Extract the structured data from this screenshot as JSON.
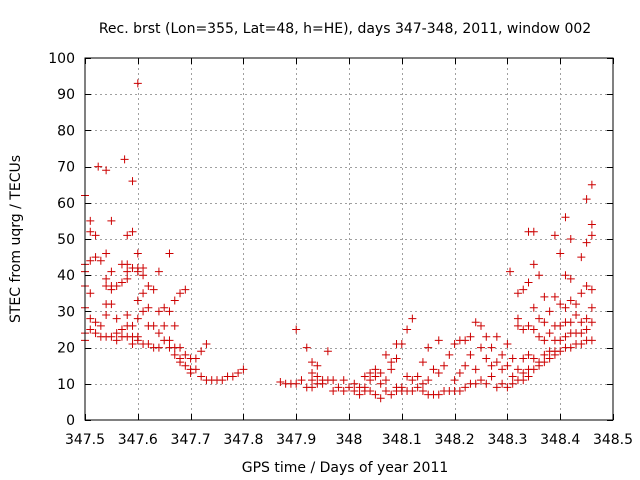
{
  "chart_data": {
    "type": "scatter",
    "title": "Rec. brst (Lon=355, Lat=48, h=HE), days 347-348, 2011, window 002",
    "xlabel": "GPS time / Days of year 2011",
    "ylabel": "STEC from uqrg / TECUs",
    "xlim": [
      347.5,
      348.5
    ],
    "ylim": [
      0,
      100
    ],
    "x_ticks": [
      347.5,
      347.6,
      347.7,
      347.8,
      347.9,
      348.0,
      348.1,
      348.2,
      348.3,
      348.4,
      348.5
    ],
    "x_tick_labels": [
      "347.5",
      "347.6",
      "347.7",
      "347.8",
      "347.9",
      "348",
      "348.1",
      "348.2",
      "348.3",
      "348.4",
      "348.5"
    ],
    "y_ticks": [
      0,
      10,
      20,
      30,
      40,
      50,
      60,
      70,
      80,
      90,
      100
    ],
    "y_tick_labels": [
      "0",
      "10",
      "20",
      "30",
      "40",
      "50",
      "60",
      "70",
      "80",
      "90",
      "100"
    ],
    "grid": true,
    "marker": "+",
    "marker_color": "#cc0000",
    "points": [
      [
        347.5,
        62
      ],
      [
        347.5,
        43
      ],
      [
        347.5,
        41
      ],
      [
        347.5,
        37
      ],
      [
        347.5,
        31
      ],
      [
        347.5,
        24
      ],
      [
        347.5,
        22
      ],
      [
        347.51,
        55
      ],
      [
        347.51,
        52
      ],
      [
        347.51,
        44
      ],
      [
        347.51,
        35
      ],
      [
        347.51,
        28
      ],
      [
        347.51,
        25
      ],
      [
        347.52,
        51
      ],
      [
        347.52,
        45
      ],
      [
        347.52,
        27
      ],
      [
        347.52,
        24
      ],
      [
        347.525,
        70
      ],
      [
        347.53,
        44
      ],
      [
        347.53,
        26
      ],
      [
        347.53,
        23
      ],
      [
        347.54,
        69
      ],
      [
        347.54,
        46
      ],
      [
        347.54,
        39
      ],
      [
        347.54,
        37
      ],
      [
        347.54,
        32
      ],
      [
        347.54,
        29
      ],
      [
        347.54,
        23
      ],
      [
        347.55,
        55
      ],
      [
        347.55,
        41
      ],
      [
        347.55,
        37
      ],
      [
        347.55,
        36
      ],
      [
        347.55,
        32
      ],
      [
        347.55,
        23
      ],
      [
        347.56,
        37
      ],
      [
        347.56,
        28
      ],
      [
        347.56,
        24
      ],
      [
        347.56,
        22
      ],
      [
        347.57,
        43
      ],
      [
        347.57,
        38
      ],
      [
        347.57,
        25
      ],
      [
        347.57,
        23
      ],
      [
        347.575,
        72
      ],
      [
        347.58,
        51
      ],
      [
        347.58,
        43
      ],
      [
        347.58,
        41
      ],
      [
        347.58,
        39
      ],
      [
        347.58,
        29
      ],
      [
        347.58,
        26
      ],
      [
        347.58,
        23
      ],
      [
        347.59,
        66
      ],
      [
        347.59,
        52
      ],
      [
        347.59,
        42
      ],
      [
        347.59,
        26
      ],
      [
        347.59,
        23
      ],
      [
        347.59,
        21
      ],
      [
        347.6,
        93
      ],
      [
        347.6,
        46
      ],
      [
        347.6,
        42
      ],
      [
        347.6,
        41
      ],
      [
        347.6,
        33
      ],
      [
        347.6,
        28
      ],
      [
        347.6,
        23
      ],
      [
        347.6,
        22
      ],
      [
        347.61,
        40
      ],
      [
        347.61,
        42
      ],
      [
        347.61,
        35
      ],
      [
        347.61,
        30
      ],
      [
        347.61,
        21
      ],
      [
        347.62,
        37
      ],
      [
        347.62,
        31
      ],
      [
        347.62,
        26
      ],
      [
        347.62,
        21
      ],
      [
        347.63,
        36
      ],
      [
        347.63,
        26
      ],
      [
        347.63,
        20
      ],
      [
        347.64,
        41
      ],
      [
        347.64,
        30
      ],
      [
        347.64,
        24
      ],
      [
        347.64,
        20
      ],
      [
        347.65,
        31
      ],
      [
        347.65,
        26
      ],
      [
        347.65,
        22
      ],
      [
        347.66,
        46
      ],
      [
        347.66,
        30
      ],
      [
        347.66,
        22
      ],
      [
        347.66,
        20
      ],
      [
        347.67,
        33
      ],
      [
        347.67,
        26
      ],
      [
        347.67,
        20
      ],
      [
        347.67,
        18
      ],
      [
        347.68,
        35
      ],
      [
        347.68,
        20
      ],
      [
        347.68,
        17
      ],
      [
        347.68,
        16
      ],
      [
        347.69,
        36
      ],
      [
        347.69,
        18
      ],
      [
        347.69,
        15
      ],
      [
        347.7,
        17
      ],
      [
        347.7,
        14
      ],
      [
        347.7,
        13
      ],
      [
        347.71,
        17
      ],
      [
        347.71,
        14
      ],
      [
        347.72,
        19
      ],
      [
        347.72,
        12
      ],
      [
        347.73,
        21
      ],
      [
        347.73,
        11
      ],
      [
        347.74,
        11
      ],
      [
        347.75,
        11
      ],
      [
        347.76,
        11
      ],
      [
        347.77,
        12
      ],
      [
        347.78,
        12
      ],
      [
        347.79,
        13
      ],
      [
        347.8,
        14
      ],
      [
        347.87,
        10.5
      ],
      [
        347.88,
        10
      ],
      [
        347.89,
        10
      ],
      [
        347.9,
        10
      ],
      [
        347.9,
        25
      ],
      [
        347.91,
        11
      ],
      [
        347.92,
        20
      ],
      [
        347.92,
        9
      ],
      [
        347.93,
        16
      ],
      [
        347.93,
        13
      ],
      [
        347.93,
        11
      ],
      [
        347.93,
        9
      ],
      [
        347.94,
        15
      ],
      [
        347.94,
        12
      ],
      [
        347.94,
        10
      ],
      [
        347.95,
        11
      ],
      [
        347.95,
        10
      ],
      [
        347.96,
        19
      ],
      [
        347.96,
        11
      ],
      [
        347.97,
        11
      ],
      [
        347.97,
        8
      ],
      [
        347.98,
        9
      ],
      [
        347.99,
        8
      ],
      [
        347.99,
        11
      ],
      [
        348.0,
        9
      ],
      [
        348.01,
        10
      ],
      [
        348.01,
        8
      ],
      [
        348.02,
        9
      ],
      [
        348.02,
        7
      ],
      [
        348.03,
        12
      ],
      [
        348.03,
        9
      ],
      [
        348.03,
        8
      ],
      [
        348.04,
        13
      ],
      [
        348.04,
        11
      ],
      [
        348.04,
        8
      ],
      [
        348.05,
        14
      ],
      [
        348.05,
        12
      ],
      [
        348.05,
        7
      ],
      [
        348.06,
        13
      ],
      [
        348.06,
        10
      ],
      [
        348.06,
        6
      ],
      [
        348.07,
        18
      ],
      [
        348.07,
        11
      ],
      [
        348.07,
        8
      ],
      [
        348.08,
        16
      ],
      [
        348.08,
        14
      ],
      [
        348.08,
        7
      ],
      [
        348.09,
        21
      ],
      [
        348.09,
        17
      ],
      [
        348.09,
        9
      ],
      [
        348.09,
        8
      ],
      [
        348.1,
        21
      ],
      [
        348.1,
        9
      ],
      [
        348.1,
        8
      ],
      [
        348.11,
        25
      ],
      [
        348.11,
        12
      ],
      [
        348.11,
        8
      ],
      [
        348.12,
        28
      ],
      [
        348.12,
        11
      ],
      [
        348.12,
        8
      ],
      [
        348.13,
        12
      ],
      [
        348.13,
        9
      ],
      [
        348.14,
        16
      ],
      [
        348.14,
        10
      ],
      [
        348.14,
        8
      ],
      [
        348.15,
        20
      ],
      [
        348.15,
        11
      ],
      [
        348.15,
        7
      ],
      [
        348.16,
        14
      ],
      [
        348.16,
        7
      ],
      [
        348.17,
        22
      ],
      [
        348.17,
        13
      ],
      [
        348.17,
        7
      ],
      [
        348.18,
        15
      ],
      [
        348.18,
        8
      ],
      [
        348.19,
        18
      ],
      [
        348.19,
        8
      ],
      [
        348.2,
        21
      ],
      [
        348.2,
        11
      ],
      [
        348.2,
        8
      ],
      [
        348.21,
        22
      ],
      [
        348.21,
        13
      ],
      [
        348.21,
        8
      ],
      [
        348.22,
        22
      ],
      [
        348.22,
        15
      ],
      [
        348.22,
        9
      ],
      [
        348.23,
        23
      ],
      [
        348.23,
        18
      ],
      [
        348.23,
        10
      ],
      [
        348.24,
        27
      ],
      [
        348.24,
        14
      ],
      [
        348.24,
        10
      ],
      [
        348.25,
        26
      ],
      [
        348.25,
        20
      ],
      [
        348.25,
        11
      ],
      [
        348.26,
        23
      ],
      [
        348.26,
        17
      ],
      [
        348.26,
        10
      ],
      [
        348.27,
        20
      ],
      [
        348.27,
        15
      ],
      [
        348.27,
        12
      ],
      [
        348.28,
        23
      ],
      [
        348.28,
        16
      ],
      [
        348.28,
        9
      ],
      [
        348.29,
        18
      ],
      [
        348.29,
        14
      ],
      [
        348.29,
        10
      ],
      [
        348.3,
        21
      ],
      [
        348.3,
        15
      ],
      [
        348.3,
        9
      ],
      [
        348.305,
        41
      ],
      [
        348.31,
        17
      ],
      [
        348.31,
        12
      ],
      [
        348.31,
        10
      ],
      [
        348.32,
        35
      ],
      [
        348.32,
        28
      ],
      [
        348.32,
        26
      ],
      [
        348.32,
        14
      ],
      [
        348.32,
        11
      ],
      [
        348.33,
        36
      ],
      [
        348.33,
        25
      ],
      [
        348.33,
        17
      ],
      [
        348.33,
        13
      ],
      [
        348.33,
        11
      ],
      [
        348.34,
        52
      ],
      [
        348.34,
        38
      ],
      [
        348.34,
        26
      ],
      [
        348.34,
        18
      ],
      [
        348.34,
        14
      ],
      [
        348.34,
        12
      ],
      [
        348.35,
        52
      ],
      [
        348.35,
        43
      ],
      [
        348.35,
        31
      ],
      [
        348.35,
        25
      ],
      [
        348.35,
        17
      ],
      [
        348.35,
        14
      ],
      [
        348.36,
        40
      ],
      [
        348.36,
        28
      ],
      [
        348.36,
        23
      ],
      [
        348.36,
        16
      ],
      [
        348.36,
        15
      ],
      [
        348.37,
        34
      ],
      [
        348.37,
        27
      ],
      [
        348.37,
        22
      ],
      [
        348.37,
        18
      ],
      [
        348.37,
        16
      ],
      [
        348.38,
        30
      ],
      [
        348.38,
        24
      ],
      [
        348.38,
        19
      ],
      [
        348.38,
        17
      ],
      [
        348.39,
        51
      ],
      [
        348.39,
        34
      ],
      [
        348.39,
        26
      ],
      [
        348.39,
        22
      ],
      [
        348.39,
        19
      ],
      [
        348.39,
        18
      ],
      [
        348.4,
        46
      ],
      [
        348.4,
        32
      ],
      [
        348.4,
        26
      ],
      [
        348.4,
        22
      ],
      [
        348.4,
        19
      ],
      [
        348.41,
        56
      ],
      [
        348.41,
        40
      ],
      [
        348.41,
        31
      ],
      [
        348.41,
        27
      ],
      [
        348.41,
        23
      ],
      [
        348.41,
        20
      ],
      [
        348.42,
        50
      ],
      [
        348.42,
        39
      ],
      [
        348.42,
        33
      ],
      [
        348.42,
        27
      ],
      [
        348.42,
        24
      ],
      [
        348.42,
        20
      ],
      [
        348.43,
        32
      ],
      [
        348.43,
        29
      ],
      [
        348.43,
        24
      ],
      [
        348.43,
        21
      ],
      [
        348.44,
        45
      ],
      [
        348.44,
        35
      ],
      [
        348.44,
        27
      ],
      [
        348.44,
        24
      ],
      [
        348.44,
        21
      ],
      [
        348.45,
        61
      ],
      [
        348.45,
        49
      ],
      [
        348.45,
        37
      ],
      [
        348.45,
        28
      ],
      [
        348.45,
        25
      ],
      [
        348.45,
        22
      ],
      [
        348.46,
        65
      ],
      [
        348.46,
        54
      ],
      [
        348.46,
        51
      ],
      [
        348.46,
        36
      ],
      [
        348.46,
        31
      ],
      [
        348.46,
        27
      ],
      [
        348.46,
        22
      ]
    ]
  }
}
